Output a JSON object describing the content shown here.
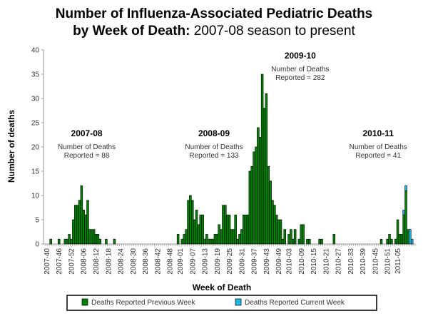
{
  "chart_data": {
    "type": "bar",
    "title_line1": "Number of Influenza-Associated Pediatric Deaths",
    "title_line2_bold": "by Week of Death:",
    "title_line2_rest": " 2007-08 season to present",
    "xlabel": "Week of Death",
    "ylabel": "Number of deaths",
    "ylim": [
      0,
      40
    ],
    "yticks": [
      0,
      5,
      10,
      15,
      20,
      25,
      30,
      35,
      40
    ],
    "xtick_labels": [
      "2007-40",
      "2007-46",
      "2007-52",
      "2008-06",
      "2008-12",
      "2008-18",
      "2008-24",
      "2008-30",
      "2008-36",
      "2008-42",
      "2008-48",
      "2009-01",
      "2009-07",
      "2009-13",
      "2009-19",
      "2009-25",
      "2009-31",
      "2009-37",
      "2009-43",
      "2009-49",
      "2010-03",
      "2010-09",
      "2010-15",
      "2010-21",
      "2010-27",
      "2010-33",
      "2010-39",
      "2010-45",
      "2010-51",
      "2011-05"
    ],
    "legend": {
      "position": "bottom",
      "entries": [
        {
          "name": "Deaths Reported Previous Week",
          "color": "#008000"
        },
        {
          "name": "Deaths Reported Current Week",
          "color": "#1fb6e8"
        }
      ]
    },
    "annotations": [
      {
        "season": "2007-08",
        "line1": "Number of Deaths",
        "line2": "Reported = 88",
        "at_week_index": 20,
        "y": 24
      },
      {
        "season": "2008-09",
        "line1": "Number of Deaths",
        "line2": "Reported = 133",
        "at_week_index": 82,
        "y": 24
      },
      {
        "season": "2009-10",
        "line1": "Number of Deaths",
        "line2": "Reported = 282",
        "at_week_index": 124,
        "y": 40
      },
      {
        "season": "2010-11",
        "line1": "Number of Deaths",
        "line2": "Reported = 41",
        "at_week_index": 162,
        "y": 24
      }
    ],
    "series": [
      {
        "name": "Deaths Reported Previous Week",
        "color": "#008000",
        "values": [
          0,
          0,
          1,
          0,
          0,
          0,
          1,
          0,
          0,
          1,
          1,
          2,
          1,
          5,
          8,
          8,
          9,
          12,
          7,
          6,
          9,
          3,
          3,
          3,
          2,
          2,
          1,
          0,
          0,
          1,
          0,
          0,
          0,
          1,
          0,
          0,
          0,
          0,
          0,
          0,
          0,
          0,
          0,
          0,
          0,
          0,
          0,
          0,
          0,
          0,
          0,
          0,
          0,
          0,
          0,
          0,
          0,
          0,
          0,
          0,
          0,
          0,
          0,
          0,
          2,
          0,
          1,
          2,
          3,
          9,
          10,
          9,
          5,
          7,
          4,
          6,
          6,
          1,
          2,
          1,
          1,
          1,
          2,
          2,
          4,
          3,
          8,
          8,
          6,
          6,
          3,
          3,
          6,
          1,
          2,
          3,
          6,
          6,
          6,
          15,
          16,
          19,
          20,
          24,
          22,
          35,
          28,
          31,
          16,
          13,
          9,
          8,
          6,
          5,
          5,
          1,
          3,
          0,
          2,
          3,
          1,
          3,
          0,
          1,
          4,
          4,
          0,
          1,
          1,
          0,
          0,
          0,
          0,
          1,
          1,
          0,
          0,
          0,
          0,
          0,
          2,
          0,
          0,
          0,
          0,
          0,
          0,
          0,
          0,
          0,
          0,
          0,
          0,
          0,
          0,
          0,
          0,
          0,
          0,
          0,
          0,
          0,
          0,
          1,
          0,
          0,
          1,
          2,
          1,
          0,
          1,
          5,
          2,
          2,
          6,
          11,
          3,
          0,
          0,
          0
        ]
      },
      {
        "name": "Deaths Reported Current Week",
        "color": "#1fb6e8",
        "values": [
          0,
          0,
          0,
          0,
          0,
          0,
          0,
          0,
          0,
          0,
          0,
          0,
          0,
          0,
          0,
          0,
          0,
          0,
          0,
          0,
          0,
          0,
          0,
          0,
          0,
          0,
          0,
          0,
          0,
          0,
          0,
          0,
          0,
          0,
          0,
          0,
          0,
          0,
          0,
          0,
          0,
          0,
          0,
          0,
          0,
          0,
          0,
          0,
          0,
          0,
          0,
          0,
          0,
          0,
          0,
          0,
          0,
          0,
          0,
          0,
          0,
          0,
          0,
          0,
          0,
          0,
          0,
          0,
          0,
          0,
          0,
          0,
          0,
          0,
          0,
          0,
          0,
          0,
          0,
          0,
          0,
          0,
          0,
          0,
          0,
          0,
          0,
          0,
          0,
          0,
          0,
          0,
          0,
          0,
          0,
          0,
          0,
          0,
          0,
          0,
          0,
          0,
          0,
          0,
          0,
          0,
          0,
          0,
          0,
          0,
          0,
          0,
          0,
          0,
          0,
          0,
          0,
          0,
          0,
          0,
          0,
          0,
          0,
          0,
          0,
          0,
          0,
          0,
          0,
          0,
          0,
          0,
          0,
          0,
          0,
          0,
          0,
          0,
          0,
          0,
          0,
          0,
          0,
          0,
          0,
          0,
          0,
          0,
          0,
          0,
          0,
          0,
          0,
          0,
          0,
          0,
          0,
          0,
          0,
          0,
          0,
          0,
          0,
          0,
          0,
          0,
          0,
          0,
          0,
          0,
          0,
          0,
          0,
          0,
          1,
          1,
          0,
          3,
          1,
          0
        ]
      }
    ]
  }
}
